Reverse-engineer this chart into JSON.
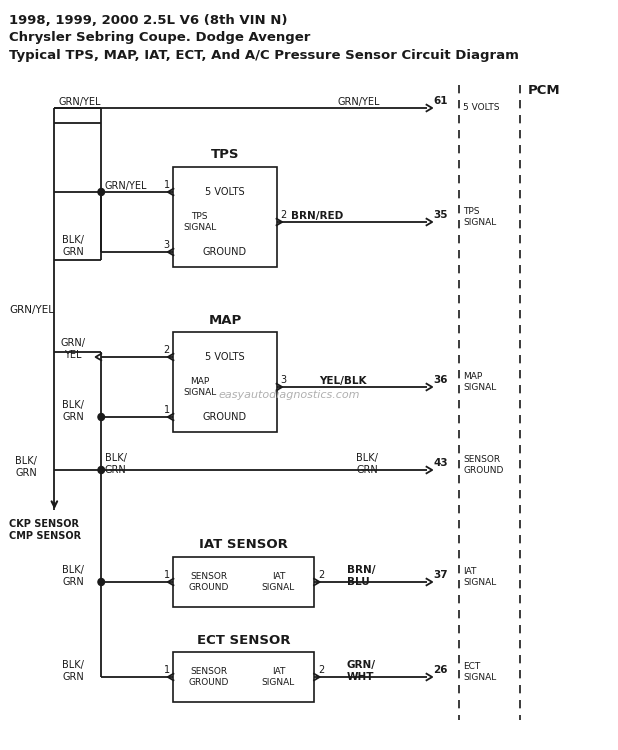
{
  "title_line1": "1998, 1999, 2000 2.5L V6 (8th VIN N)",
  "title_line2": "Chrysler Sebring Coupe. Dodge Avenger",
  "title_line3": "Typical TPS, MAP, IAT, ECT, And A/C Pressure Sensor Circuit Diagram",
  "watermark": "easyautodiagnostics.com",
  "bg_color": "#ffffff",
  "line_color": "#1a1a1a",
  "box_bg": "#ffffff",
  "pcm_label": "PCM",
  "pcm_pin_61": "61",
  "pcm_pin_35": "35",
  "pcm_pin_36": "36",
  "pcm_pin_43": "43",
  "pcm_pin_37": "37",
  "pcm_pin_26": "26",
  "wire_grn_yel": "GRN/YEL",
  "wire_blk_grn_2": "BLK/\nGRN",
  "wire_brn_red": "BRN/RED",
  "wire_yel_blk": "YEL/BLK",
  "wire_brn_blu": "BRN/\nBLU",
  "wire_grn_wht": "GRN/\nWHT",
  "ckp_label": "CKP SENSOR\nCMP SENSOR"
}
